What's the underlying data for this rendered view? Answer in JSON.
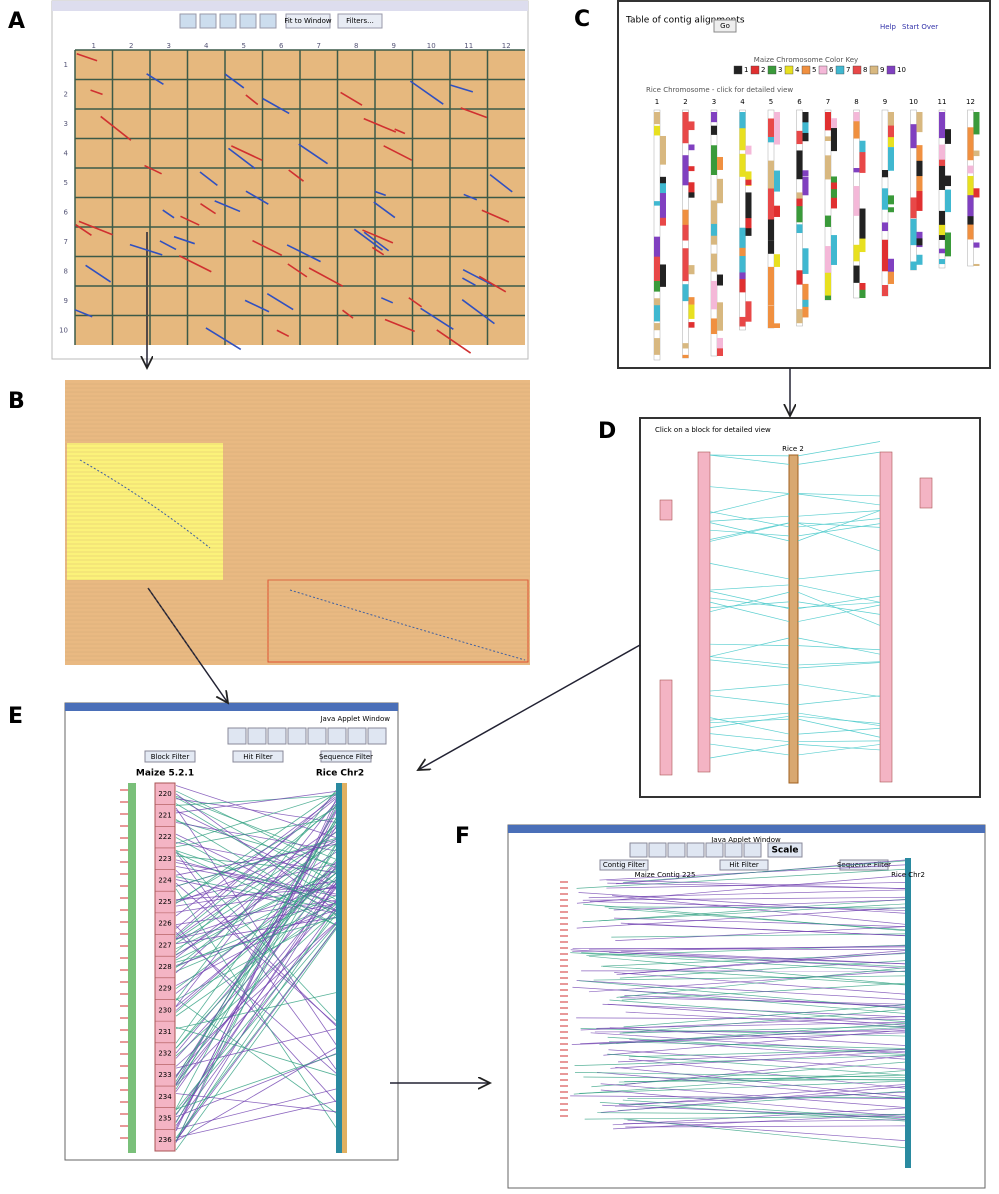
{
  "panels": {
    "A": {
      "letter": "A",
      "toolbar": [
        "Fit to Window",
        "Filters..."
      ],
      "columns": [
        "1",
        "2",
        "3",
        "4",
        "5",
        "6",
        "7",
        "8",
        "9",
        "10",
        "11",
        "12"
      ],
      "rows": [
        "1",
        "2",
        "3",
        "4",
        "5",
        "6",
        "7",
        "8",
        "9",
        "10"
      ]
    },
    "B": {
      "letter": "B"
    },
    "C": {
      "letter": "C",
      "title": "Table of contig alignments",
      "go": "Go",
      "help": "Help",
      "start_over": "Start Over",
      "key_title": "Maize Chromosome Color Key",
      "key": [
        {
          "label": "1",
          "color": "#222222"
        },
        {
          "label": "2",
          "color": "#e03030"
        },
        {
          "label": "3",
          "color": "#3a9a3a"
        },
        {
          "label": "4",
          "color": "#e8e020"
        },
        {
          "label": "5",
          "color": "#f09040"
        },
        {
          "label": "6",
          "color": "#f4b8d8"
        },
        {
          "label": "7",
          "color": "#40b8d0"
        },
        {
          "label": "8",
          "color": "#e84848"
        },
        {
          "label": "9",
          "color": "#d8b880"
        },
        {
          "label": "10",
          "color": "#8040c0"
        }
      ],
      "subtitle": "Rice Chromosome - click for detailed view",
      "columns": [
        "1",
        "2",
        "3",
        "4",
        "5",
        "6",
        "7",
        "8",
        "9",
        "10",
        "11",
        "12"
      ]
    },
    "D": {
      "letter": "D",
      "hint": "Click on a block for detailed view",
      "center": "Rice 2"
    },
    "E": {
      "letter": "E",
      "window": "Java Applet Window",
      "filters": [
        "Block Filter",
        "Hit Filter",
        "Sequence Filter"
      ],
      "left_title": "Maize 5.2.1",
      "right_title": "Rice Chr2",
      "contigs": [
        "220",
        "221",
        "222",
        "223",
        "224",
        "225",
        "226",
        "227",
        "228",
        "229",
        "230",
        "231",
        "232",
        "233",
        "234",
        "235",
        "236"
      ]
    },
    "F": {
      "letter": "F",
      "window": "Java Applet Window",
      "scale": "Scale",
      "filters": [
        "Contig Filter",
        "Hit Filter",
        "Sequence Filter"
      ],
      "center_title": "Maize Contig 225",
      "right_title": "Rice Chr2"
    }
  }
}
